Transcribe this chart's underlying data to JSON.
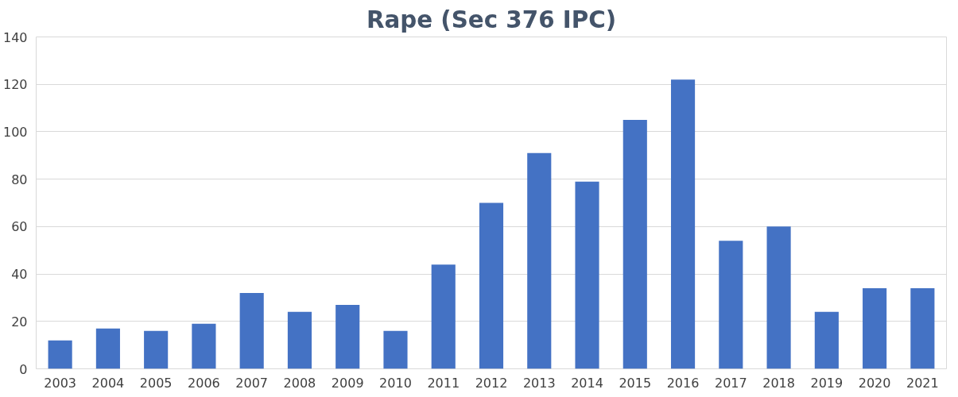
{
  "chart_data": {
    "type": "bar",
    "title": "Rape (Sec 376 IPC)",
    "categories": [
      "2003",
      "2004",
      "2005",
      "2006",
      "2007",
      "2008",
      "2009",
      "2010",
      "2011",
      "2012",
      "2013",
      "2014",
      "2015",
      "2016",
      "2017",
      "2018",
      "2019",
      "2020",
      "2021"
    ],
    "values": [
      12,
      17,
      16,
      19,
      32,
      24,
      27,
      16,
      44,
      70,
      91,
      79,
      105,
      122,
      54,
      60,
      24,
      34,
      34
    ],
    "color": "#4472c4",
    "ylim": [
      0,
      140
    ],
    "yticks": [
      0,
      20,
      40,
      60,
      80,
      100,
      120,
      140
    ],
    "grid": "y"
  }
}
